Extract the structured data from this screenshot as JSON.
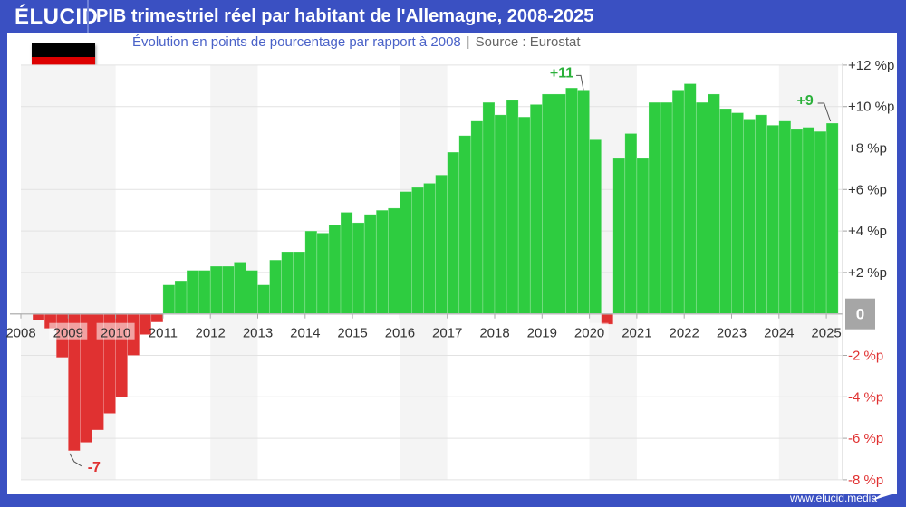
{
  "header": {
    "logo": "ÉLUCID",
    "title": "PIB trimestriel réel par habitant de l'Allemagne, 2008-2025"
  },
  "subtitle": {
    "text": "Évolution en points de pourcentage par rapport à 2008",
    "source": "Source : Eurostat"
  },
  "flag": {
    "colors": [
      "#000000",
      "#dd0000",
      "#ffce00"
    ]
  },
  "footer": {
    "url": "www.elucid.media"
  },
  "colors": {
    "positive": "#2ecc40",
    "negative": "#e03131",
    "brand": "#3a50c2"
  },
  "chart_data": {
    "type": "bar",
    "title": "PIB trimestriel réel par habitant de l'Allemagne, 2008-2025",
    "subtitle": "Évolution en points de pourcentage par rapport à 2008",
    "x_start": "2008-Q1",
    "frequency": "quarterly",
    "year_ticks": [
      "2008",
      "2009",
      "2010",
      "2011",
      "2012",
      "2013",
      "2014",
      "2015",
      "2016",
      "2017",
      "2018",
      "2019",
      "2020",
      "2021",
      "2022",
      "2023",
      "2024",
      "2025"
    ],
    "y_ticks": [
      "+12 %p",
      "+10 %p",
      "+8 %p",
      "+6 %p",
      "+4 %p",
      "+2 %p",
      "0",
      "-2 %p",
      "-4 %p",
      "-6 %p",
      "-8 %p"
    ],
    "ylim": [
      -8,
      12
    ],
    "grid": true,
    "values": [
      0.0,
      -0.3,
      -0.7,
      -2.1,
      -6.6,
      -6.2,
      -5.6,
      -4.8,
      -4.0,
      -2.0,
      -1.0,
      -0.4,
      1.4,
      1.6,
      2.1,
      2.1,
      2.3,
      2.3,
      2.5,
      2.1,
      1.4,
      2.6,
      3.0,
      3.0,
      4.0,
      3.9,
      4.3,
      4.9,
      4.4,
      4.8,
      5.0,
      5.1,
      5.9,
      6.1,
      6.3,
      6.7,
      7.8,
      8.6,
      9.3,
      10.2,
      9.6,
      10.3,
      9.5,
      10.1,
      10.6,
      10.6,
      10.9,
      10.8,
      8.4,
      -0.5,
      7.5,
      8.7,
      7.5,
      10.2,
      10.2,
      10.8,
      11.1,
      10.2,
      10.6,
      9.9,
      9.7,
      9.4,
      9.6,
      9.1,
      9.3,
      8.9,
      9.0,
      8.8,
      9.2
    ],
    "annotations": [
      {
        "label": "-7",
        "index": 4
      },
      {
        "label": "+11",
        "index": 47
      },
      {
        "label": "+9",
        "index": 68
      }
    ]
  }
}
